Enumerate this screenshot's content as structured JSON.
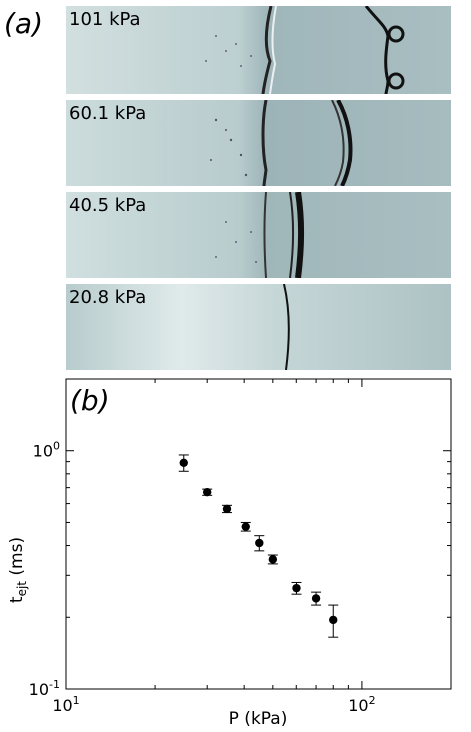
{
  "panel_a": {
    "label": "(a)",
    "frames": [
      {
        "label": "101 kPa"
      },
      {
        "label": "60.1 kPa"
      },
      {
        "label": "40.5 kPa"
      },
      {
        "label": "20.8 kPa"
      }
    ]
  },
  "chart_data": {
    "type": "scatter",
    "panel_label": "(b)",
    "xscale": "log",
    "yscale": "log",
    "xlim": [
      10,
      200
    ],
    "ylim": [
      0.1,
      2
    ],
    "xlabel": "P (kPa)",
    "ylabel": "t_ejt (ms)",
    "xticks": [
      {
        "value": 10,
        "base": "10",
        "exp": "1"
      },
      {
        "value": 100,
        "base": "10",
        "exp": "2"
      }
    ],
    "yticks": [
      {
        "value": 0.1,
        "base": "10",
        "exp": "-1"
      },
      {
        "value": 1,
        "base": "10",
        "exp": "0"
      }
    ],
    "points": [
      {
        "x": 25,
        "y": 0.89,
        "err": 0.07
      },
      {
        "x": 30,
        "y": 0.67,
        "err": 0.02
      },
      {
        "x": 35,
        "y": 0.57,
        "err": 0.02
      },
      {
        "x": 40.5,
        "y": 0.48,
        "err": 0.02
      },
      {
        "x": 45,
        "y": 0.41,
        "err": 0.03
      },
      {
        "x": 50,
        "y": 0.35,
        "err": 0.015
      },
      {
        "x": 60.1,
        "y": 0.265,
        "err": 0.015
      },
      {
        "x": 70,
        "y": 0.24,
        "err": 0.015
      },
      {
        "x": 80,
        "y": 0.195,
        "err": 0.03
      }
    ],
    "grid": false,
    "marker_color": "#000000"
  }
}
